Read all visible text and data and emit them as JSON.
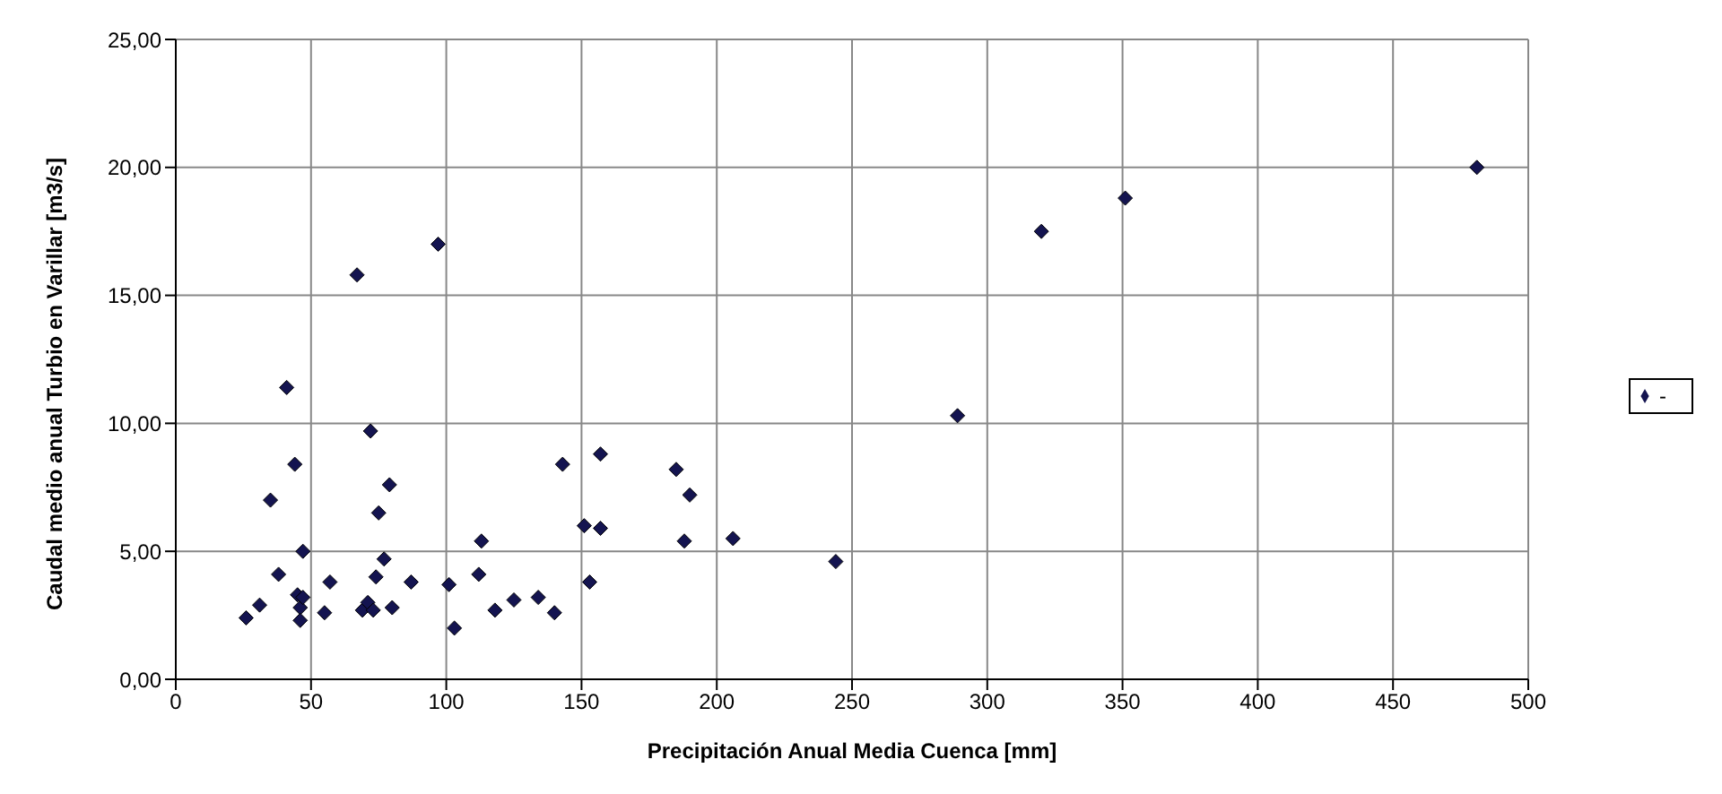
{
  "chart_data": {
    "type": "scatter",
    "xlabel": "Precipitación Anual Media Cuenca [mm]",
    "ylabel": "Caudal medio anual Turbio en Varillar [m3/s]",
    "series": [
      {
        "name": "-",
        "color": "#141450",
        "x": [
          26,
          31,
          35,
          38,
          41,
          44,
          45,
          46,
          46,
          47,
          47,
          55,
          57,
          67,
          69,
          71,
          72,
          73,
          74,
          75,
          77,
          79,
          80,
          87,
          97,
          101,
          103,
          112,
          113,
          118,
          125,
          134,
          140,
          143,
          151,
          153,
          157,
          157,
          185,
          190,
          188,
          206,
          244,
          289,
          320,
          351,
          481
        ],
        "values": [
          2.4,
          2.9,
          7.0,
          4.1,
          11.4,
          8.4,
          3.3,
          2.8,
          2.3,
          5.0,
          3.2,
          2.6,
          3.8,
          15.8,
          2.7,
          3.0,
          9.7,
          2.7,
          4.0,
          6.5,
          4.7,
          7.6,
          2.8,
          3.8,
          17.0,
          3.7,
          2.0,
          4.1,
          5.4,
          2.7,
          3.1,
          3.2,
          2.6,
          8.4,
          6.0,
          3.8,
          8.8,
          5.9,
          8.2,
          7.2,
          5.4,
          5.5,
          4.6,
          10.3,
          17.5,
          18.8,
          20.0
        ]
      }
    ],
    "xlim": [
      0,
      500
    ],
    "xticks": [
      0,
      50,
      100,
      150,
      200,
      250,
      300,
      350,
      400,
      450,
      500
    ],
    "ylim": [
      0,
      25
    ],
    "yticks": [
      {
        "value": 0,
        "label": "0,00"
      },
      {
        "value": 5,
        "label": "5,00"
      },
      {
        "value": 10,
        "label": "10,00"
      },
      {
        "value": 15,
        "label": "15,00"
      },
      {
        "value": 20,
        "label": "20,00"
      },
      {
        "value": 25,
        "label": "25,00"
      }
    ],
    "grid": true,
    "legend": "right",
    "marker": "diamond"
  }
}
